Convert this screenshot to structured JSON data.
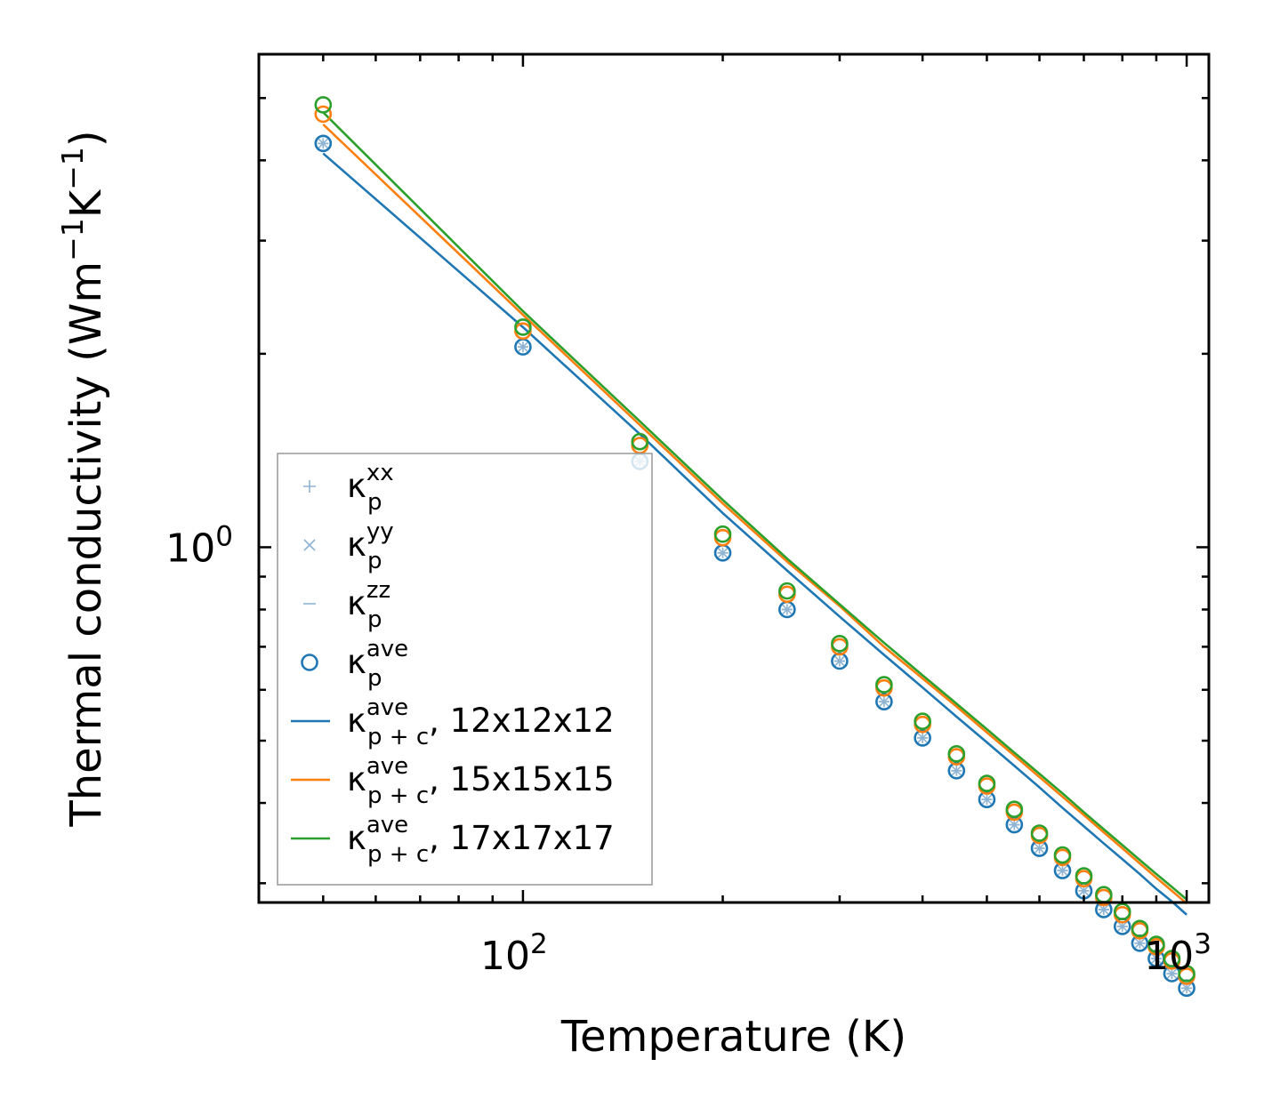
{
  "chart_data": {
    "type": "scatter",
    "title": "",
    "xlabel": "Temperature (K)",
    "ylabel_parts": [
      "Thermal conductivity (Wm",
      "−1",
      "K",
      "−1",
      ")"
    ],
    "xscale": "log",
    "yscale": "log",
    "xlim": [
      40,
      1080
    ],
    "ylim": [
      0.28,
      5.85
    ],
    "xtick_labels": [
      {
        "value": 100,
        "base": "10",
        "exp": "2"
      },
      {
        "value": 1000,
        "base": "10",
        "exp": "3"
      }
    ],
    "ytick_labels": [
      {
        "value": 1,
        "base": "10",
        "exp": "0"
      }
    ],
    "x": [
      50,
      100,
      150,
      200,
      250,
      300,
      350,
      400,
      450,
      500,
      550,
      600,
      650,
      700,
      750,
      800,
      850,
      900,
      950,
      1000
    ],
    "scatter_series": [
      {
        "name": "κp xx",
        "marker": "plus",
        "values": [
          4.25,
          2.05,
          1.36,
          0.98,
          0.8,
          0.665,
          0.575,
          0.505,
          0.449,
          0.405,
          0.37,
          0.34,
          0.314,
          0.292,
          0.273,
          0.257,
          0.242,
          0.229,
          0.217,
          0.206
        ]
      },
      {
        "name": "κp yy",
        "marker": "x",
        "values": [
          4.25,
          2.05,
          1.36,
          0.98,
          0.8,
          0.665,
          0.575,
          0.505,
          0.449,
          0.405,
          0.37,
          0.34,
          0.314,
          0.292,
          0.273,
          0.257,
          0.242,
          0.229,
          0.217,
          0.206
        ]
      },
      {
        "name": "κp zz",
        "marker": "hline",
        "values": [
          4.25,
          2.05,
          1.36,
          0.98,
          0.8,
          0.665,
          0.575,
          0.505,
          0.449,
          0.405,
          0.37,
          0.34,
          0.314,
          0.292,
          0.273,
          0.257,
          0.242,
          0.229,
          0.217,
          0.206
        ]
      },
      {
        "name": "κp ave (12x12x12)",
        "marker": "circle",
        "values": [
          4.25,
          2.05,
          1.36,
          0.98,
          0.8,
          0.665,
          0.575,
          0.505,
          0.449,
          0.405,
          0.37,
          0.34,
          0.314,
          0.292,
          0.273,
          0.257,
          0.242,
          0.229,
          0.217,
          0.206
        ]
      },
      {
        "name": "κp ave (15x15x15)",
        "marker": "circle",
        "values": [
          4.72,
          2.17,
          1.44,
          1.035,
          0.845,
          0.7,
          0.604,
          0.53,
          0.472,
          0.425,
          0.387,
          0.356,
          0.329,
          0.305,
          0.285,
          0.268,
          0.253,
          0.239,
          0.227,
          0.215
        ]
      },
      {
        "name": "κp ave (17x17x17)",
        "marker": "circle",
        "values": [
          4.88,
          2.2,
          1.46,
          1.048,
          0.855,
          0.708,
          0.611,
          0.536,
          0.477,
          0.429,
          0.391,
          0.359,
          0.332,
          0.308,
          0.288,
          0.271,
          0.255,
          0.241,
          0.229,
          0.217
        ]
      }
    ],
    "line_series": [
      {
        "name": "κp+c ave, 12x12x12",
        "values": [
          4.1,
          2.2,
          1.5,
          1.13,
          0.92,
          0.78,
          0.68,
          0.605,
          0.545,
          0.497,
          0.457,
          0.423,
          0.393,
          0.368,
          0.346,
          0.327,
          0.31,
          0.294,
          0.281,
          0.268
        ]
      },
      {
        "name": "κp+c ave, 15x15x15",
        "values": [
          4.55,
          2.3,
          1.55,
          1.17,
          0.95,
          0.81,
          0.7,
          0.625,
          0.565,
          0.515,
          0.474,
          0.439,
          0.409,
          0.383,
          0.36,
          0.34,
          0.322,
          0.306,
          0.292,
          0.279
        ]
      },
      {
        "name": "κp+c ave, 17x17x17",
        "values": [
          4.75,
          2.33,
          1.57,
          1.185,
          0.96,
          0.815,
          0.71,
          0.632,
          0.571,
          0.521,
          0.479,
          0.444,
          0.414,
          0.387,
          0.364,
          0.344,
          0.326,
          0.31,
          0.296,
          0.283
        ]
      }
    ],
    "legend": {
      "location": "lower-left",
      "entries": [
        {
          "kind": "plus",
          "color": "#8fb4d3",
          "base": "κ",
          "sup": "xx",
          "sub": "p",
          "suffix": ""
        },
        {
          "kind": "x",
          "color": "#8fb4d3",
          "base": "κ",
          "sup": "yy",
          "sub": "p",
          "suffix": ""
        },
        {
          "kind": "hline",
          "color": "#8fb4d3",
          "base": "κ",
          "sup": "zz",
          "sub": "p",
          "suffix": ""
        },
        {
          "kind": "circle",
          "color": "#1f77b4",
          "base": "κ",
          "sup": "ave",
          "sub": "p",
          "suffix": ""
        },
        {
          "kind": "line",
          "color": "#1f77b4",
          "base": "κ",
          "sup": "ave",
          "sub": "p + c",
          "suffix": ", 12x12x12"
        },
        {
          "kind": "line",
          "color": "#ff7f0e",
          "base": "κ",
          "sup": "ave",
          "sub": "p + c",
          "suffix": ", 15x15x15"
        },
        {
          "kind": "line",
          "color": "#2ca02c",
          "base": "κ",
          "sup": "ave",
          "sub": "p + c",
          "suffix": ", 17x17x17"
        }
      ]
    },
    "colors": {
      "blue": "#1f77b4",
      "orange": "#ff7f0e",
      "green": "#2ca02c",
      "light_blue": "#8fb4d3"
    }
  }
}
